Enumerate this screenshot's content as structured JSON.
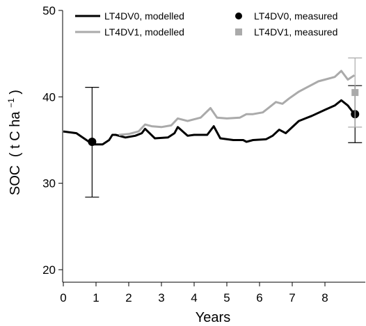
{
  "chart_data": {
    "type": "line",
    "xlabel": "Years",
    "ylabel": "SOC",
    "ylabel_unit": "t C ha",
    "ylabel_unit_sup": "−1",
    "xlim": [
      0,
      9
    ],
    "ylim": [
      20,
      50
    ],
    "x_ticks": [
      0,
      1,
      2,
      3,
      4,
      5,
      6,
      7,
      8
    ],
    "y_ticks": [
      20,
      30,
      40,
      50
    ],
    "legend_position": "top",
    "series": [
      {
        "name": "LT4DV0, modelled",
        "color": "#000000",
        "x": [
          0,
          0.4,
          0.9,
          1.2,
          1.4,
          1.5,
          1.6,
          1.9,
          2.2,
          2.4,
          2.5,
          2.8,
          3.2,
          3.4,
          3.5,
          3.8,
          4.0,
          4.4,
          4.6,
          4.8,
          5.2,
          5.5,
          5.6,
          5.8,
          6.2,
          6.4,
          6.6,
          6.8,
          7.2,
          7.4,
          7.6,
          8.0,
          8.3,
          8.5,
          8.7,
          8.9
        ],
        "y": [
          36.0,
          35.8,
          34.5,
          34.5,
          35.0,
          35.6,
          35.6,
          35.3,
          35.5,
          35.8,
          36.3,
          35.2,
          35.3,
          35.8,
          36.5,
          35.5,
          35.6,
          35.6,
          36.6,
          35.2,
          35.0,
          35.0,
          34.8,
          35.0,
          35.1,
          35.5,
          36.2,
          35.8,
          37.2,
          37.5,
          37.8,
          38.5,
          39.0,
          39.6,
          39.0,
          38.0
        ]
      },
      {
        "name": "LT4DV1, modelled",
        "color": "#aaaaaa",
        "x": [
          1.7,
          2.0,
          2.3,
          2.5,
          2.7,
          3.0,
          3.3,
          3.5,
          3.8,
          4.2,
          4.5,
          4.7,
          5.0,
          5.4,
          5.6,
          5.8,
          6.1,
          6.3,
          6.5,
          6.7,
          6.9,
          7.2,
          7.5,
          7.8,
          8.0,
          8.3,
          8.5,
          8.7,
          8.9
        ],
        "y": [
          35.6,
          35.7,
          36.0,
          36.8,
          36.6,
          36.5,
          36.7,
          37.5,
          37.2,
          37.6,
          38.7,
          37.6,
          37.5,
          37.6,
          38.0,
          38.0,
          38.2,
          38.8,
          39.4,
          39.2,
          39.8,
          40.6,
          41.2,
          41.8,
          42.0,
          42.3,
          43.0,
          42.0,
          42.5
        ]
      }
    ],
    "measured": [
      {
        "name": "LT4DV0, measured",
        "color": "#000000",
        "marker": "circle",
        "x": 0.88,
        "y": 34.8,
        "ylow": 28.4,
        "yhigh": 41.1
      },
      {
        "name": "LT4DV0, measured",
        "color": "#000000",
        "marker": "circle",
        "x": 8.92,
        "y": 38.0,
        "ylow": 34.7,
        "yhigh": 41.3
      },
      {
        "name": "LT4DV1, measured",
        "color": "#aaaaaa",
        "marker": "square",
        "x": 8.92,
        "y": 40.5,
        "ylow": 36.5,
        "yhigh": 44.5
      }
    ],
    "legend": [
      {
        "label": "LT4DV0, modelled",
        "kind": "line",
        "color": "#000000"
      },
      {
        "label": "LT4DV0, measured",
        "kind": "circle",
        "color": "#000000"
      },
      {
        "label": "LT4DV1, modelled",
        "kind": "line",
        "color": "#aaaaaa"
      },
      {
        "label": "LT4DV1, measured",
        "kind": "square",
        "color": "#aaaaaa"
      }
    ]
  }
}
